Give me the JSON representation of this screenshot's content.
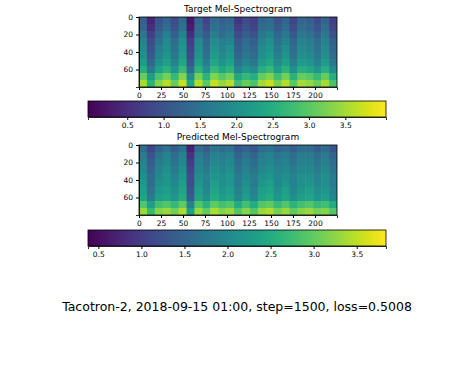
{
  "chart_data": [
    {
      "type": "heatmap",
      "title": "Target Mel-Spectrogram",
      "xlim": [
        0,
        225
      ],
      "ylim": [
        0,
        80
      ],
      "xticks": [
        0,
        25,
        50,
        75,
        100,
        125,
        150,
        175,
        200
      ],
      "yticks": [
        0,
        20,
        40,
        60
      ],
      "values": [
        [
          1.2,
          0.4,
          1.0,
          1.3,
          0.9,
          1.4,
          0.2,
          1.3,
          0.8,
          1.4,
          1.2,
          1.3,
          0.6,
          0.9,
          0.7,
          1.3,
          1.4,
          1.0,
          1.3,
          0.8,
          1.3,
          1.2,
          0.9,
          1.3,
          0.7
        ],
        [
          1.3,
          0.5,
          1.1,
          1.4,
          1.0,
          1.5,
          0.3,
          1.4,
          0.9,
          1.5,
          1.3,
          1.4,
          0.7,
          1.0,
          0.8,
          1.4,
          1.5,
          1.1,
          1.4,
          0.9,
          1.4,
          1.3,
          1.0,
          1.4,
          0.8
        ],
        [
          1.6,
          0.7,
          1.3,
          1.7,
          1.2,
          1.8,
          0.5,
          1.5,
          1.1,
          1.7,
          1.4,
          1.6,
          0.9,
          1.2,
          1.0,
          1.6,
          1.8,
          1.3,
          1.6,
          1.1,
          1.6,
          1.5,
          1.2,
          1.6,
          1.0
        ],
        [
          1.8,
          0.9,
          1.5,
          1.9,
          1.4,
          2.0,
          0.7,
          1.9,
          1.3,
          1.9,
          1.7,
          1.8,
          1.1,
          1.4,
          1.2,
          1.8,
          2.0,
          1.5,
          1.8,
          1.3,
          1.8,
          1.7,
          1.4,
          1.8,
          1.2
        ],
        [
          1.9,
          1.0,
          1.7,
          2.0,
          1.5,
          2.1,
          0.8,
          2.0,
          1.4,
          2.1,
          1.8,
          2.0,
          1.2,
          1.5,
          1.3,
          1.9,
          2.1,
          1.6,
          2.0,
          1.4,
          1.9,
          1.8,
          1.5,
          1.9,
          1.3
        ],
        [
          2.0,
          1.1,
          1.8,
          2.1,
          1.6,
          2.2,
          0.9,
          2.1,
          1.5,
          2.2,
          1.9,
          2.1,
          1.3,
          1.6,
          1.4,
          2.0,
          2.2,
          1.7,
          2.1,
          1.5,
          2.0,
          1.9,
          1.6,
          2.0,
          1.4
        ],
        [
          2.2,
          1.3,
          2.0,
          2.3,
          1.8,
          2.4,
          1.1,
          2.3,
          1.7,
          2.4,
          2.1,
          2.3,
          1.5,
          1.8,
          1.6,
          2.2,
          2.4,
          1.9,
          2.3,
          1.7,
          2.2,
          2.1,
          1.8,
          2.2,
          1.6
        ],
        [
          2.5,
          1.6,
          2.3,
          2.6,
          2.1,
          2.7,
          1.4,
          2.6,
          2.0,
          2.7,
          2.4,
          2.6,
          1.8,
          2.1,
          1.9,
          2.5,
          2.7,
          2.2,
          2.6,
          2.0,
          2.5,
          2.4,
          2.1,
          2.5,
          1.9
        ],
        [
          3.1,
          2.2,
          2.9,
          3.2,
          2.7,
          3.3,
          2.0,
          3.2,
          2.6,
          3.3,
          3.0,
          3.2,
          2.4,
          2.7,
          2.5,
          3.1,
          3.3,
          2.8,
          3.2,
          2.6,
          3.1,
          3.0,
          2.7,
          3.1,
          2.5
        ],
        [
          3.5,
          2.6,
          3.3,
          3.6,
          3.1,
          3.7,
          2.4,
          3.6,
          3.0,
          3.7,
          3.4,
          3.6,
          2.8,
          3.1,
          2.9,
          3.5,
          3.7,
          3.2,
          3.6,
          3.0,
          3.5,
          3.4,
          3.1,
          3.5,
          2.9
        ]
      ],
      "colorbar": {
        "range": [
          -0.04,
          4.06
        ],
        "ticks": [
          0.5,
          {
            "value": 1,
            "label": "1.0"
          },
          1.5,
          {
            "value": 2,
            "label": "2.0"
          },
          2.5,
          {
            "value": 3,
            "label": "3.0"
          },
          3.5
        ]
      }
    },
    {
      "type": "heatmap",
      "title": "Predicted Mel-Spectrogram",
      "xlim": [
        0,
        225
      ],
      "ylim": [
        0,
        80
      ],
      "xticks": [
        0,
        25,
        50,
        75,
        100,
        125,
        150,
        175,
        200
      ],
      "yticks": [
        0,
        20,
        40,
        60
      ],
      "values": [
        [
          1.6,
          1.1,
          1.5,
          1.7,
          1.4,
          1.7,
          0.7,
          1.6,
          1.4,
          1.7,
          1.6,
          1.7,
          1.3,
          1.5,
          1.3,
          1.6,
          1.7,
          1.5,
          1.6,
          1.4,
          1.6,
          1.6,
          1.4,
          1.6,
          1.3
        ],
        [
          1.8,
          1.3,
          1.7,
          1.9,
          1.6,
          1.9,
          0.9,
          1.8,
          1.6,
          1.9,
          1.8,
          1.9,
          1.5,
          1.7,
          1.5,
          1.8,
          1.9,
          1.7,
          1.8,
          1.6,
          1.8,
          1.8,
          1.6,
          1.8,
          1.5
        ],
        [
          1.9,
          1.4,
          1.8,
          2.0,
          1.7,
          2.0,
          1.0,
          1.9,
          1.7,
          2.0,
          1.9,
          2.0,
          1.6,
          1.8,
          1.6,
          1.9,
          2.0,
          1.8,
          1.9,
          1.7,
          1.9,
          1.9,
          1.7,
          1.9,
          1.6
        ],
        [
          2.0,
          1.5,
          1.9,
          2.1,
          1.8,
          2.1,
          1.1,
          2.0,
          1.8,
          2.1,
          2.0,
          2.1,
          1.7,
          1.9,
          1.7,
          2.0,
          2.1,
          1.9,
          2.0,
          1.8,
          2.0,
          2.0,
          1.8,
          2.0,
          1.7
        ],
        [
          2.1,
          1.6,
          2.0,
          2.2,
          1.9,
          2.2,
          1.2,
          2.1,
          1.9,
          2.2,
          2.1,
          2.2,
          1.8,
          2.0,
          1.8,
          2.1,
          2.2,
          2.0,
          2.1,
          1.9,
          2.1,
          2.1,
          1.9,
          2.1,
          1.8
        ],
        [
          2.2,
          1.6,
          2.1,
          2.2,
          2.0,
          2.3,
          1.2,
          2.2,
          1.9,
          2.3,
          2.1,
          2.2,
          1.8,
          2.1,
          1.8,
          2.2,
          2.3,
          2.0,
          2.2,
          1.9,
          2.1,
          2.2,
          2.0,
          2.1,
          1.8
        ],
        [
          2.3,
          1.7,
          2.2,
          2.3,
          2.1,
          2.4,
          1.3,
          2.3,
          2.0,
          2.4,
          2.2,
          2.3,
          1.9,
          2.2,
          1.9,
          2.3,
          2.4,
          2.1,
          2.3,
          2.0,
          2.2,
          2.3,
          2.1,
          2.2,
          1.9
        ],
        [
          2.4,
          1.8,
          2.3,
          2.4,
          2.2,
          2.5,
          1.4,
          2.4,
          2.1,
          2.5,
          2.3,
          2.4,
          2.0,
          2.3,
          2.0,
          2.4,
          2.5,
          2.2,
          2.4,
          2.1,
          2.3,
          2.4,
          2.2,
          2.3,
          2.0
        ],
        [
          2.9,
          2.3,
          2.8,
          2.9,
          2.7,
          3.0,
          1.9,
          2.9,
          2.6,
          3.0,
          2.8,
          2.9,
          2.5,
          2.8,
          2.5,
          2.9,
          3.0,
          2.7,
          2.9,
          2.6,
          2.8,
          2.9,
          2.7,
          2.8,
          2.5
        ],
        [
          3.3,
          2.7,
          3.2,
          3.3,
          3.1,
          3.4,
          2.3,
          3.3,
          3.0,
          3.4,
          3.2,
          3.3,
          2.9,
          3.2,
          2.9,
          3.3,
          3.4,
          3.1,
          3.3,
          3.0,
          3.2,
          3.3,
          3.1,
          3.2,
          2.9
        ]
      ],
      "colorbar": {
        "range": [
          0.38,
          3.84
        ],
        "ticks": [
          0.5,
          {
            "value": 1,
            "label": "1.0"
          },
          1.5,
          {
            "value": 2,
            "label": "2.0"
          },
          2.5,
          {
            "value": 3,
            "label": "3.0"
          },
          3.5
        ]
      }
    }
  ],
  "caption": "Tacotron-2, 2018-09-15 01:00, step=1500, loss=0.5008"
}
